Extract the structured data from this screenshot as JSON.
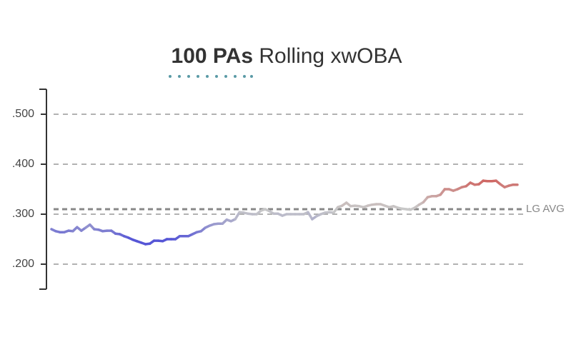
{
  "chart_data": {
    "type": "line",
    "title_parts": [
      "100 PAs",
      "Rolling xwOBA"
    ],
    "values": [
      0.27,
      0.266,
      0.264,
      0.264,
      0.267,
      0.266,
      0.274,
      0.267,
      0.273,
      0.279,
      0.27,
      0.269,
      0.266,
      0.267,
      0.267,
      0.261,
      0.26,
      0.256,
      0.253,
      0.249,
      0.246,
      0.243,
      0.24,
      0.241,
      0.247,
      0.247,
      0.246,
      0.25,
      0.25,
      0.25,
      0.256,
      0.256,
      0.256,
      0.26,
      0.264,
      0.266,
      0.273,
      0.277,
      0.28,
      0.281,
      0.281,
      0.289,
      0.286,
      0.29,
      0.304,
      0.303,
      0.301,
      0.3,
      0.3,
      0.307,
      0.31,
      0.306,
      0.301,
      0.301,
      0.297,
      0.3,
      0.3,
      0.3,
      0.3,
      0.3,
      0.304,
      0.29,
      0.296,
      0.3,
      0.303,
      0.304,
      0.303,
      0.314,
      0.317,
      0.323,
      0.316,
      0.317,
      0.316,
      0.314,
      0.317,
      0.319,
      0.32,
      0.32,
      0.317,
      0.314,
      0.316,
      0.313,
      0.311,
      0.31,
      0.309,
      0.313,
      0.319,
      0.324,
      0.334,
      0.336,
      0.336,
      0.339,
      0.35,
      0.35,
      0.347,
      0.35,
      0.354,
      0.356,
      0.363,
      0.359,
      0.36,
      0.367,
      0.366,
      0.366,
      0.367,
      0.36,
      0.354,
      0.357,
      0.359,
      0.359
    ],
    "ylim": [
      0.15,
      0.55
    ],
    "yticks": [
      {
        "value": 0.5,
        "label": ".500"
      },
      {
        "value": 0.4,
        "label": ".400"
      },
      {
        "value": 0.3,
        "label": ".300"
      },
      {
        "value": 0.2,
        "label": ".200"
      }
    ],
    "grid": true,
    "reference_line": {
      "value": 0.31,
      "label": "LG AVG"
    },
    "low_color": "#5656d6",
    "mid_color": "#c8c8c8",
    "high_color": "#d0605c"
  }
}
